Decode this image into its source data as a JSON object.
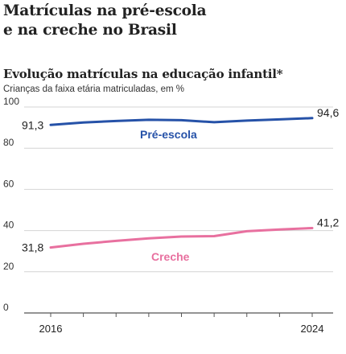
{
  "headline": {
    "line1": "Matrículas na pré-escola",
    "line2": "e na creche no Brasil"
  },
  "chart_data": {
    "type": "line",
    "title": "Evolução matrículas na educação infantil*",
    "subtitle": "Crianças da faixa etária matriculadas, em %",
    "xlabel": "",
    "ylabel": "",
    "x": [
      2016,
      2017,
      2018,
      2019,
      2020,
      2021,
      2022,
      2023,
      2024
    ],
    "x_tick_labels": [
      "2016",
      "2024"
    ],
    "ylim": [
      0,
      100
    ],
    "y_ticks": [
      0,
      20,
      40,
      60,
      80,
      100
    ],
    "grid": true,
    "series": [
      {
        "name": "Pré-escola",
        "color": "#2652a8",
        "values": [
          91.3,
          92.5,
          93.2,
          93.8,
          93.6,
          92.6,
          93.4,
          94.0,
          94.6
        ],
        "start_label": "91,3",
        "end_label": "94,6"
      },
      {
        "name": "Creche",
        "color": "#e8709f",
        "values": [
          31.8,
          33.6,
          35.0,
          36.2,
          37.1,
          37.3,
          39.7,
          40.5,
          41.2
        ],
        "start_label": "31,8",
        "end_label": "41,2"
      }
    ]
  }
}
